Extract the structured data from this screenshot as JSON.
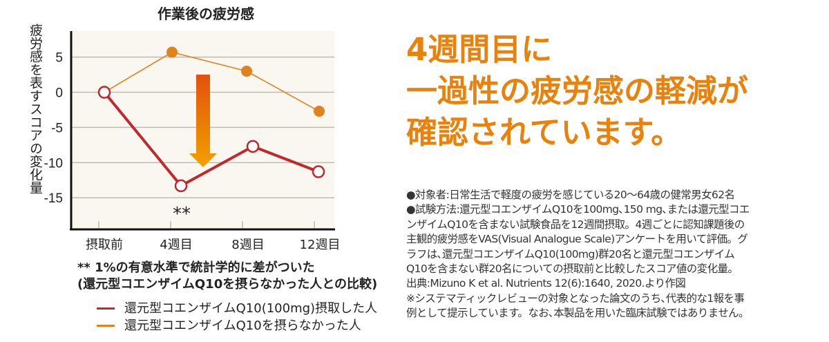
{
  "chart_data": {
    "type": "line",
    "title": "作業後の疲労感",
    "ylabel": "疲労感を表すスコアの変化量",
    "xlabel": "",
    "categories": [
      "摂取前",
      "4週目",
      "8週目",
      "12週目"
    ],
    "yticks": [
      5,
      0,
      -5,
      -10,
      -15
    ],
    "ylim": [
      -19.5,
      8.7
    ],
    "grid": true,
    "background": "#faf7f0",
    "series": [
      {
        "name": "還元型コエンザイムQ10(100mg)摂取した人",
        "values": [
          0,
          -13.3,
          -7.7,
          -11.3
        ],
        "color": "#c0282b",
        "marker": "open-circle"
      },
      {
        "name": "還元型コエンザイムQ10を摂らなかった人",
        "values": [
          0,
          5.7,
          3.0,
          -2.7
        ],
        "color": "#e0821e",
        "marker": "filled-circle"
      }
    ],
    "annotations": [
      {
        "text": "**",
        "category": "4週目"
      }
    ],
    "arrow": {
      "direction": "down",
      "colors": [
        "#e4500c",
        "#f3a000"
      ]
    },
    "footnote": "** 1%の有意水準で統計学的に差がついた",
    "footnote2": "(還元型コエンザイムQ10を摂らなかった人との比較)",
    "legend_placement": "bottom"
  },
  "headline": {
    "lines": [
      "4週間目に",
      "一過性の疲労感の軽減が",
      "確認されています。"
    ],
    "color": "#e8820c"
  },
  "notes": [
    "●対象者:日常生活で軽度の疲労を感じている20～64歳の健常男女62名",
    "●試験方法:還元型コエンザイムQ10を100mg､150 mg､または還元型コエ",
    "ンザイムQ10を含まない試験食品を12週間摂取。4週ごとに認知課題後の",
    "主観的疲労感をVAS(Visual Analogue Scale)アンケートを用いて評価。グ",
    "ラフは､還元型コエンザイムQ10(100mg)群20名と還元型コエンザイム",
    "Q10を含まない群20名についての摂取前と比較したスコア値の変化量。",
    "出典:Mizuno K et al. Nutrients 12(6):1640, 2020.より作図",
    "※システマティックレビューの対象となった論文のうち､代表的な1報を事",
    "例として提示しています。なお､本製品を用いた臨床試験ではありません。"
  ]
}
